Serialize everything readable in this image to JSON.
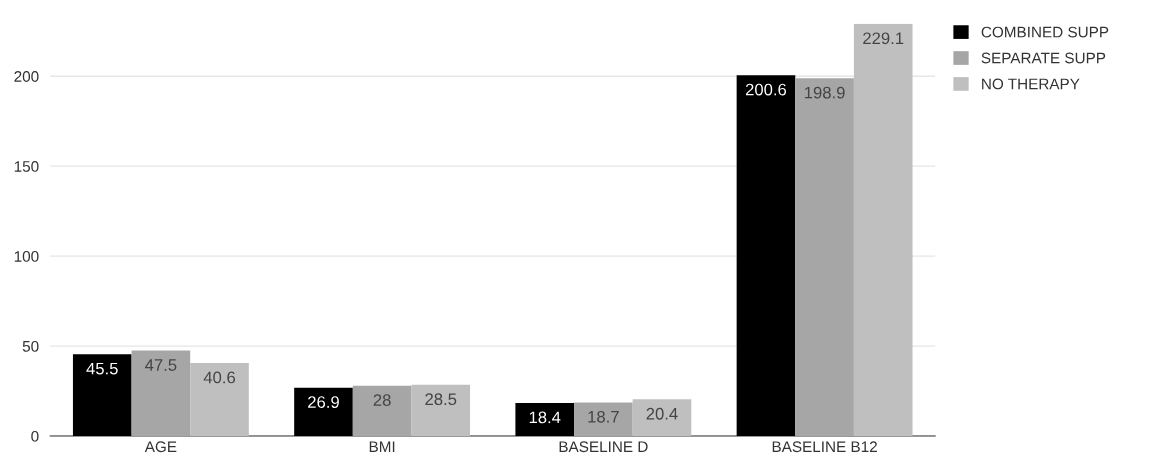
{
  "chart_data": {
    "type": "bar",
    "categories": [
      "AGE",
      "BMI",
      "BASELINE D",
      "BASELINE B12"
    ],
    "series": [
      {
        "name": "COMBINED SUPP",
        "color": "#000000",
        "values": [
          45.5,
          26.9,
          18.4,
          200.6
        ]
      },
      {
        "name": "SEPARATE SUPP",
        "color": "#a6a6a6",
        "values": [
          47.5,
          28,
          18.7,
          198.9
        ]
      },
      {
        "name": "NO THERAPY",
        "color": "#bfbfbf",
        "values": [
          40.6,
          28.5,
          20.4,
          229.1
        ]
      }
    ],
    "ylim": [
      0,
      229.1
    ],
    "yticks": [
      0,
      50,
      100,
      150,
      200
    ],
    "grid": "y",
    "legend": "top right",
    "data_labels": true
  }
}
